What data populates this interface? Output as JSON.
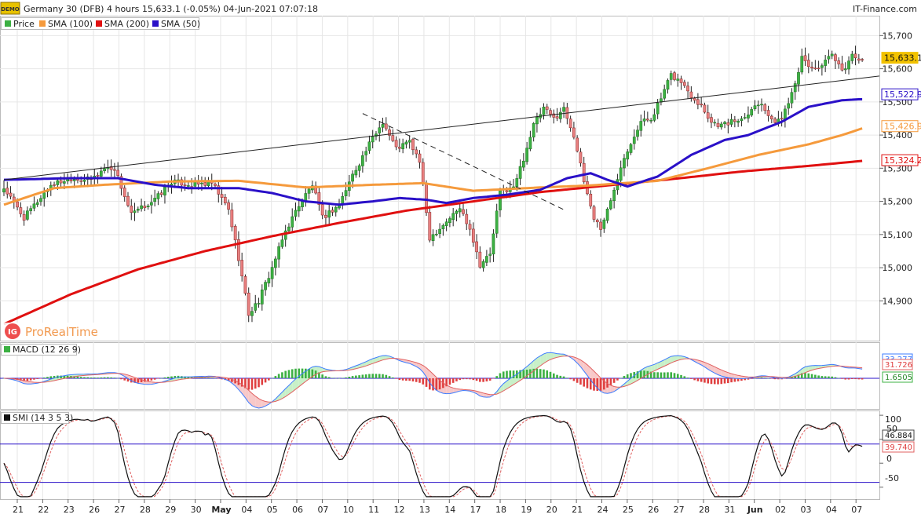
{
  "header": {
    "title": "Germany 30 (DFB) 4 hours 15,633.1 (-0.05%) 04-Jun-2021 07:07:18",
    "brand": "IT-Finance.com",
    "logo_text": "DEMO"
  },
  "watermark": {
    "ig": "IG",
    "text": "ProRealTime"
  },
  "legend": [
    {
      "label": "Price",
      "color": "#3cb043"
    },
    {
      "label": "SMA (100)",
      "color": "#f59a3c"
    },
    {
      "label": "SMA (200)",
      "color": "#e01010"
    },
    {
      "label": "SMA (50)",
      "color": "#2a10c8"
    }
  ],
  "macd_panel": {
    "label": "MACD (12 26 9)",
    "tags": [
      "33.277",
      "31.726",
      "1.6505"
    ]
  },
  "smi_panel": {
    "label": "SMI (14 3 5 3)",
    "tags": [
      "46.884",
      "39.740"
    ],
    "levels": [
      "100",
      "50",
      "0",
      "-50"
    ]
  },
  "chart_data": [
    {
      "type": "candlestick",
      "title": "Germany 30 (DFB) 4 hours",
      "ylim": [
        14780,
        15760
      ],
      "y_ticks": [
        "15,700",
        "15,600",
        "15,500",
        "15,400",
        "15,300",
        "15,200",
        "15,100",
        "15,000",
        "14,900"
      ],
      "x_ticks": [
        "21",
        "22",
        "23",
        "26",
        "27",
        "28",
        "29",
        "30",
        "May",
        "04",
        "05",
        "06",
        "07",
        "10",
        "11",
        "12",
        "13",
        "14",
        "17",
        "18",
        "19",
        "20",
        "21",
        "24",
        "25",
        "26",
        "27",
        "28",
        "31",
        "Jun",
        "02",
        "03",
        "04",
        "07"
      ],
      "last_price": "15,633.1",
      "anchors": {
        "close": [
          [
            0,
            15240
          ],
          [
            6,
            15150
          ],
          [
            10,
            15200
          ],
          [
            14,
            15250
          ],
          [
            20,
            15270
          ],
          [
            26,
            15265
          ],
          [
            30,
            15300
          ],
          [
            33,
            15300
          ],
          [
            38,
            15160
          ],
          [
            45,
            15205
          ],
          [
            50,
            15260
          ],
          [
            56,
            15250
          ],
          [
            62,
            15255
          ],
          [
            67,
            15175
          ],
          [
            70,
            15030
          ],
          [
            73,
            14860
          ],
          [
            76,
            14900
          ],
          [
            80,
            15000
          ],
          [
            84,
            15110
          ],
          [
            88,
            15190
          ],
          [
            92,
            15250
          ],
          [
            95,
            15150
          ],
          [
            100,
            15190
          ],
          [
            104,
            15280
          ],
          [
            110,
            15390
          ],
          [
            113,
            15440
          ],
          [
            117,
            15360
          ],
          [
            121,
            15380
          ],
          [
            124,
            15320
          ],
          [
            127,
            15090
          ],
          [
            131,
            15130
          ],
          [
            136,
            15180
          ],
          [
            139,
            15120
          ],
          [
            142,
            15010
          ],
          [
            145,
            15040
          ],
          [
            148,
            15230
          ],
          [
            152,
            15240
          ],
          [
            155,
            15330
          ],
          [
            158,
            15430
          ],
          [
            161,
            15480
          ],
          [
            164,
            15450
          ],
          [
            167,
            15480
          ],
          [
            170,
            15400
          ],
          [
            173,
            15260
          ],
          [
            176,
            15150
          ],
          [
            178,
            15120
          ],
          [
            181,
            15200
          ],
          [
            184,
            15310
          ],
          [
            187,
            15380
          ],
          [
            190,
            15440
          ],
          [
            193,
            15450
          ],
          [
            196,
            15510
          ],
          [
            199,
            15580
          ],
          [
            202,
            15560
          ],
          [
            205,
            15520
          ],
          [
            208,
            15490
          ],
          [
            211,
            15440
          ],
          [
            214,
            15430
          ],
          [
            217,
            15440
          ],
          [
            220,
            15450
          ],
          [
            223,
            15480
          ],
          [
            226,
            15500
          ],
          [
            229,
            15440
          ],
          [
            232,
            15450
          ],
          [
            235,
            15530
          ],
          [
            238,
            15630
          ],
          [
            241,
            15600
          ],
          [
            244,
            15610
          ],
          [
            247,
            15640
          ],
          [
            250,
            15590
          ],
          [
            253,
            15640
          ],
          [
            256,
            15630
          ]
        ],
        "sma50": [
          [
            0,
            15265
          ],
          [
            20,
            15270
          ],
          [
            34,
            15270
          ],
          [
            45,
            15250
          ],
          [
            55,
            15240
          ],
          [
            70,
            15240
          ],
          [
            80,
            15225
          ],
          [
            90,
            15200
          ],
          [
            100,
            15190
          ],
          [
            110,
            15200
          ],
          [
            118,
            15210
          ],
          [
            126,
            15205
          ],
          [
            132,
            15195
          ],
          [
            140,
            15210
          ],
          [
            150,
            15220
          ],
          [
            160,
            15235
          ],
          [
            168,
            15270
          ],
          [
            175,
            15285
          ],
          [
            180,
            15265
          ],
          [
            186,
            15245
          ],
          [
            195,
            15275
          ],
          [
            205,
            15340
          ],
          [
            215,
            15385
          ],
          [
            222,
            15400
          ],
          [
            232,
            15440
          ],
          [
            240,
            15485
          ],
          [
            250,
            15505
          ],
          [
            255,
            15508
          ]
        ],
        "sma100": [
          [
            0,
            15190
          ],
          [
            15,
            15240
          ],
          [
            30,
            15250
          ],
          [
            50,
            15260
          ],
          [
            70,
            15262
          ],
          [
            90,
            15242
          ],
          [
            110,
            15250
          ],
          [
            125,
            15255
          ],
          [
            140,
            15232
          ],
          [
            160,
            15242
          ],
          [
            175,
            15248
          ],
          [
            195,
            15262
          ],
          [
            210,
            15300
          ],
          [
            225,
            15340
          ],
          [
            240,
            15372
          ],
          [
            250,
            15400
          ],
          [
            256,
            15420
          ]
        ],
        "sma200": [
          [
            0,
            14830
          ],
          [
            20,
            14920
          ],
          [
            40,
            14995
          ],
          [
            60,
            15050
          ],
          [
            80,
            15095
          ],
          [
            100,
            15135
          ],
          [
            120,
            15172
          ],
          [
            140,
            15200
          ],
          [
            160,
            15228
          ],
          [
            180,
            15248
          ],
          [
            200,
            15268
          ],
          [
            220,
            15290
          ],
          [
            240,
            15307
          ],
          [
            256,
            15322
          ]
        ],
        "trendline": [
          [
            0,
            15265
          ],
          [
            256,
            15578
          ]
        ],
        "dashed_line": [
          [
            107,
            15465
          ],
          [
            167,
            15175
          ]
        ]
      },
      "price_tags": [
        {
          "value": "15,633.1",
          "color": "#f2c200"
        },
        {
          "value": "15,522.9",
          "color": "#2a10c8"
        },
        {
          "value": "15,426.9",
          "color": "#f59a3c"
        },
        {
          "value": "15,324.2",
          "color": "#e01010"
        }
      ]
    },
    {
      "type": "macd",
      "title": "MACD (12 26 9)",
      "values_last": {
        "macd": 33.277,
        "signal": 31.726,
        "histogram": 1.6505
      }
    },
    {
      "type": "smi",
      "title": "SMI (14 3 5 3)",
      "ylim": [
        -75,
        110
      ],
      "levels": [
        100,
        50,
        0,
        -50
      ],
      "overbought": 40,
      "oversold": -40,
      "values_last": {
        "smi": 46.884,
        "signal": 39.74
      }
    }
  ]
}
